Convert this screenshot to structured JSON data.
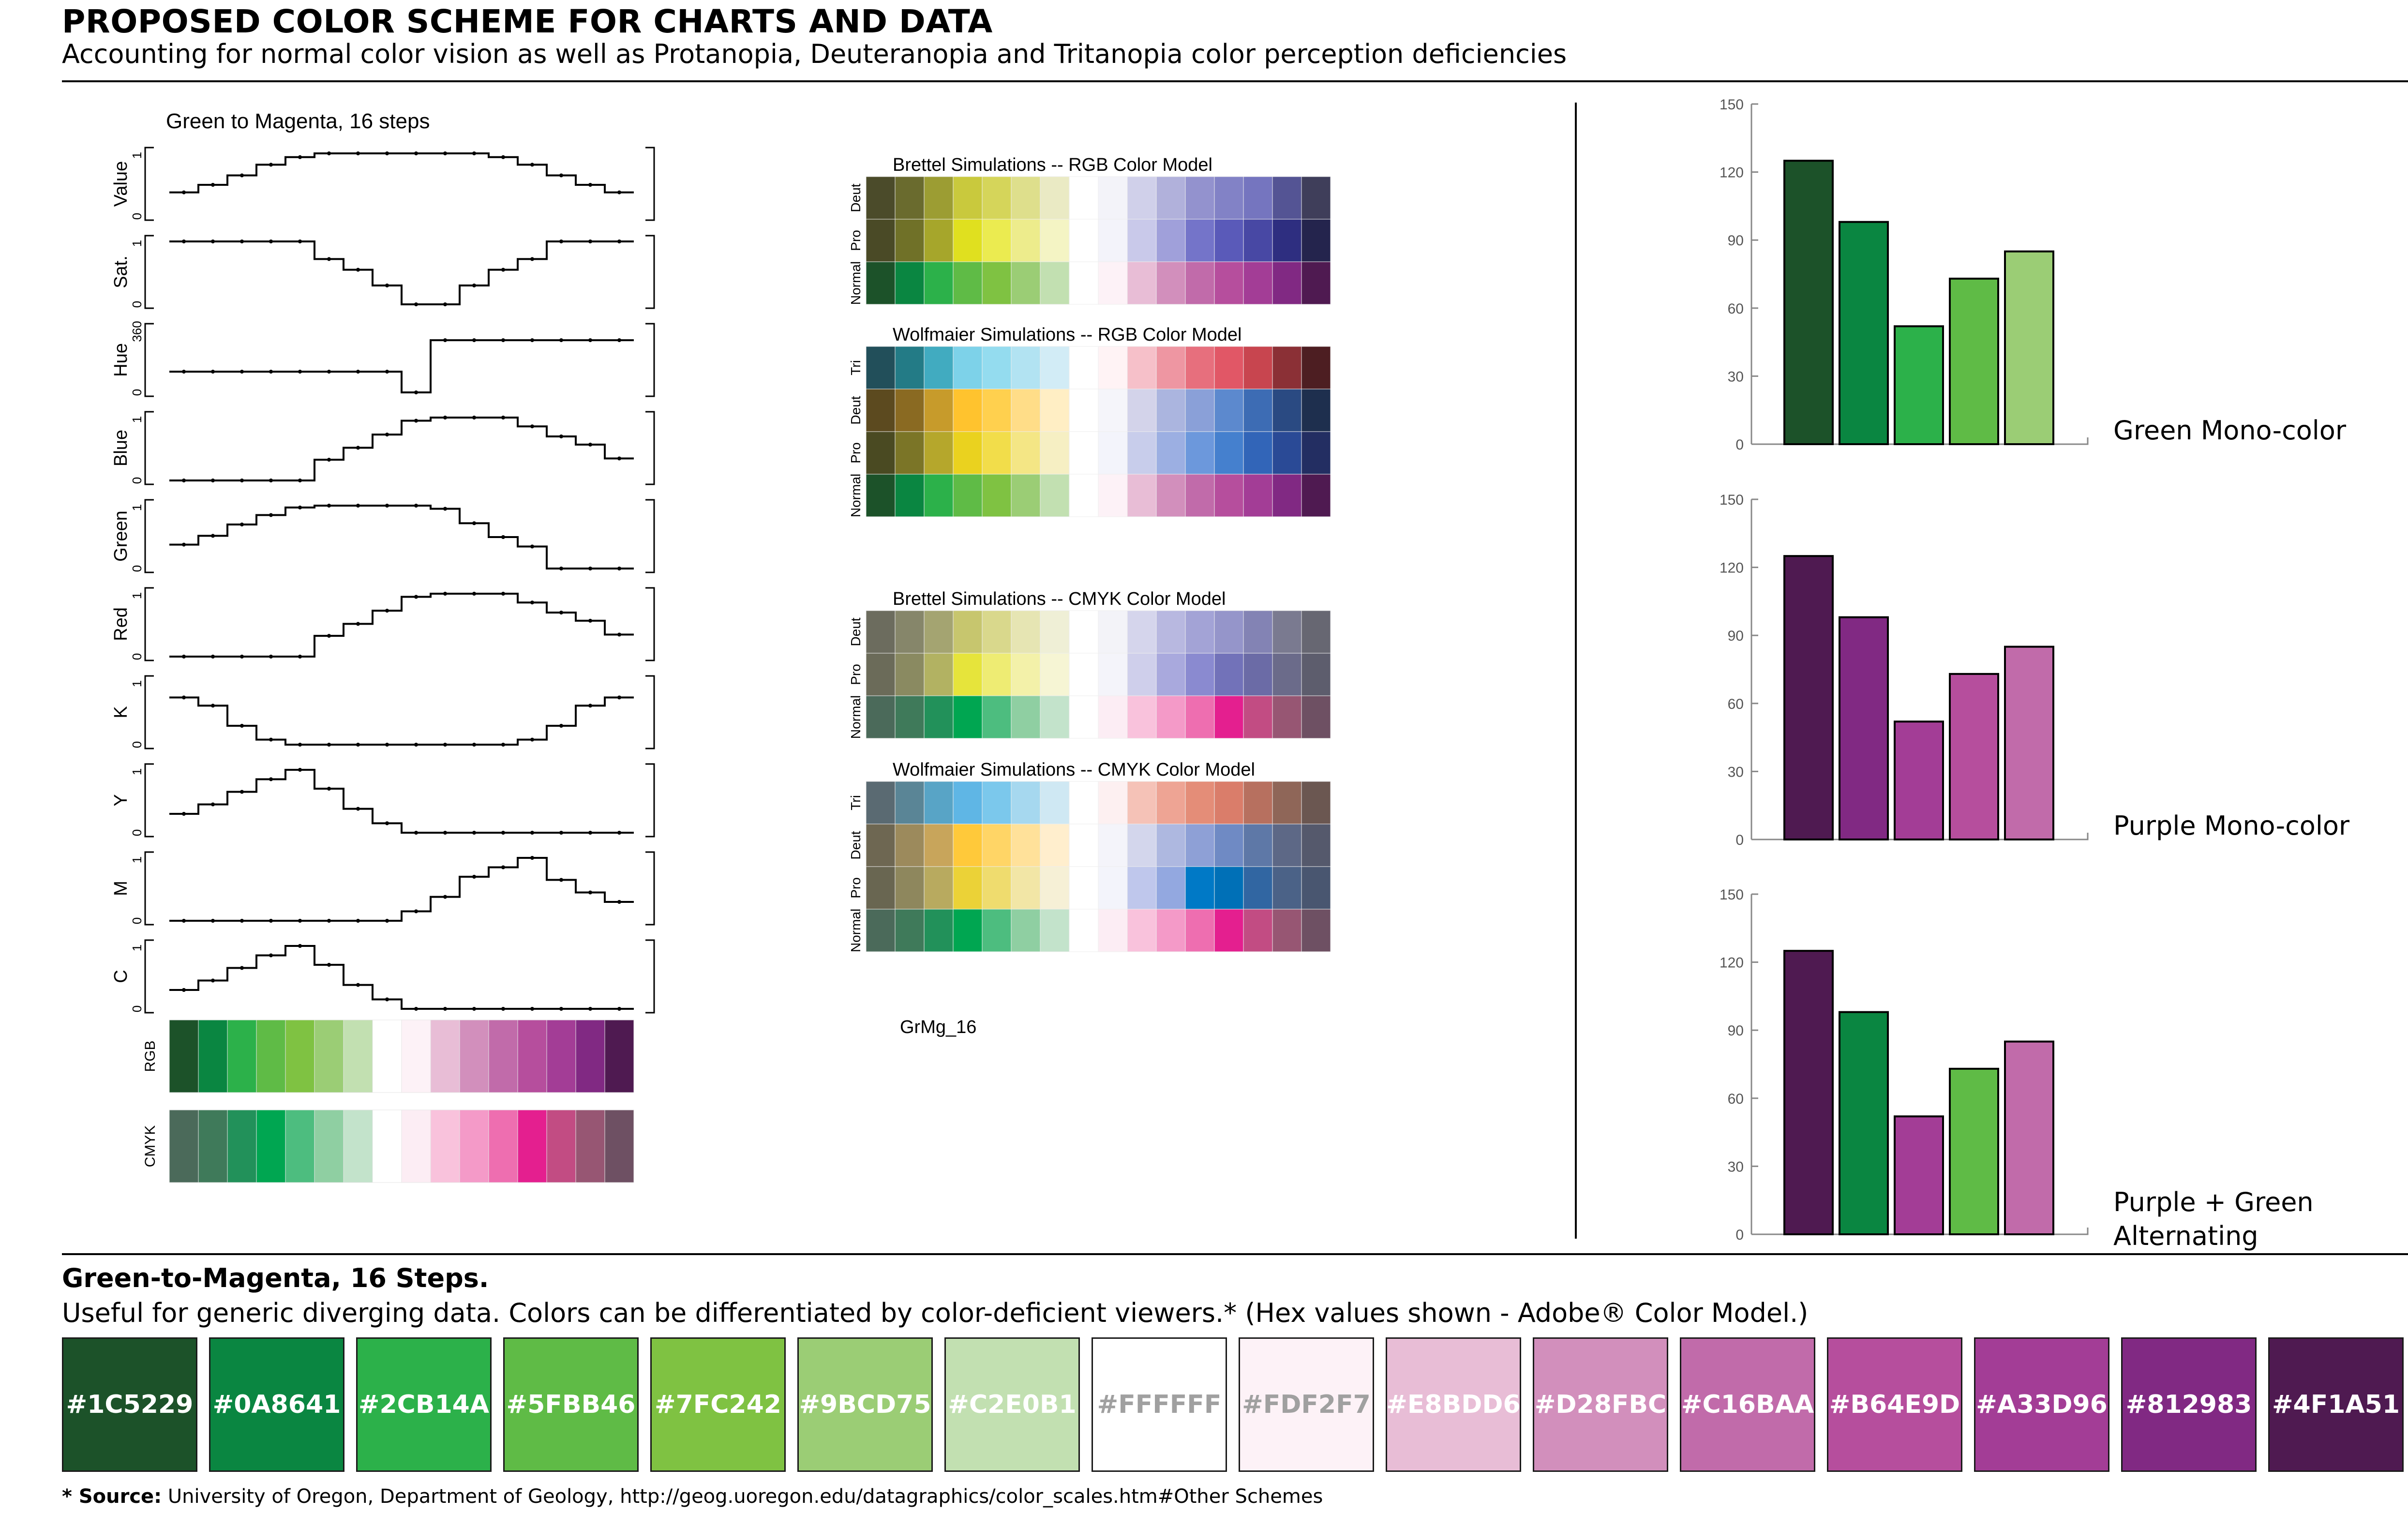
{
  "header": {
    "title": "PROPOSED COLOR SCHEME FOR CHARTS AND DATA",
    "subtitle": "Accounting for normal color vision as well as Protanopia, Deuteranopia and Tritanopia color perception deficiencies"
  },
  "scheme": {
    "title": "Green-to-Magenta, 16 Steps.",
    "description": "Useful for generic diverging data.  Colors can be differentiated by color-deficient viewers.* (Hex values shown - Adobe® Color Model.)",
    "hex_values": [
      "#1C5229",
      "#0A8641",
      "#2CB14A",
      "#5FBB46",
      "#7FC242",
      "#9BCD75",
      "#C2E0B1",
      "#FFFFFF",
      "#FDF2F7",
      "#E8BDD6",
      "#D28FBC",
      "#C16BAA",
      "#B64E9D",
      "#A33D96",
      "#812983",
      "#4F1A51"
    ],
    "label_colors": [
      "#ffffff",
      "#ffffff",
      "#ffffff",
      "#ffffff",
      "#ffffff",
      "#ffffff",
      "#ffffff",
      "#a0a0a0",
      "#a0a0a0",
      "#ffffff",
      "#ffffff",
      "#ffffff",
      "#ffffff",
      "#ffffff",
      "#ffffff",
      "#ffffff"
    ]
  },
  "footnote": {
    "bold": "* Source:",
    "text": " University of Oregon, Department of Geology, http://geog.uoregon.edu/datagraphics/color_scales.htm#Other Schemes"
  },
  "profiles": {
    "title": "Green to Magenta, 16 steps",
    "tick_top": "1",
    "tick_bottom": "0",
    "hue_tick_top": "360",
    "rows": [
      {
        "label": "Value",
        "values": [
          0.38,
          0.5,
          0.65,
          0.82,
          0.94,
          1,
          1,
          1,
          1,
          1,
          1,
          0.94,
          0.82,
          0.65,
          0.5,
          0.38
        ]
      },
      {
        "label": "Sat.",
        "values": [
          1,
          1,
          1,
          1,
          1,
          0.72,
          0.55,
          0.3,
          0,
          0,
          0.3,
          0.55,
          0.72,
          1,
          1,
          1
        ]
      },
      {
        "label": "Hue",
        "values": [
          0.33,
          0.33,
          0.33,
          0.33,
          0.33,
          0.33,
          0.33,
          0.33,
          0,
          0.83,
          0.83,
          0.83,
          0.83,
          0.83,
          0.83,
          0.83
        ]
      },
      {
        "label": "Blue",
        "values": [
          0,
          0,
          0,
          0,
          0,
          0.33,
          0.52,
          0.73,
          0.95,
          1,
          1,
          1,
          0.86,
          0.7,
          0.57,
          0.35
        ]
      },
      {
        "label": "Green",
        "values": [
          0.38,
          0.52,
          0.7,
          0.85,
          0.97,
          1,
          1,
          1,
          1,
          0.95,
          0.72,
          0.5,
          0.35,
          0,
          0,
          0
        ]
      },
      {
        "label": "Red",
        "values": [
          0,
          0,
          0,
          0,
          0,
          0.33,
          0.52,
          0.73,
          0.95,
          1,
          1,
          1,
          0.86,
          0.7,
          0.57,
          0.35
        ]
      },
      {
        "label": "K",
        "values": [
          0.75,
          0.62,
          0.3,
          0.08,
          0,
          0,
          0,
          0,
          0,
          0,
          0,
          0,
          0.08,
          0.3,
          0.62,
          0.75
        ]
      },
      {
        "label": "Y",
        "values": [
          0.3,
          0.45,
          0.65,
          0.85,
          1,
          0.7,
          0.38,
          0.15,
          0,
          0,
          0,
          0,
          0,
          0,
          0,
          0
        ]
      },
      {
        "label": "M",
        "values": [
          0,
          0,
          0,
          0,
          0,
          0,
          0,
          0,
          0.15,
          0.38,
          0.7,
          0.85,
          1,
          0.65,
          0.45,
          0.3
        ]
      },
      {
        "label": "C",
        "values": [
          0.3,
          0.45,
          0.65,
          0.85,
          1,
          0.7,
          0.38,
          0.15,
          0,
          0,
          0,
          0,
          0,
          0,
          0,
          0
        ]
      }
    ],
    "strips": [
      {
        "label": "RGB",
        "colors": [
          "#1C5229",
          "#0A8641",
          "#2CB14A",
          "#5FBB46",
          "#7FC242",
          "#9BCD75",
          "#C2E0B1",
          "#FFFFFF",
          "#FDF2F7",
          "#E8BDD6",
          "#D28FBC",
          "#C16BAA",
          "#B64E9D",
          "#A33D96",
          "#812983",
          "#4F1A51"
        ]
      },
      {
        "label": "CMYK",
        "colors": [
          "#4B6A5A",
          "#3F7A5A",
          "#22915A",
          "#00A651",
          "#4DBD7F",
          "#8FCFA2",
          "#C3E3CB",
          "#FFFFFF",
          "#FCEDF4",
          "#F9C2DC",
          "#F49AC8",
          "#EE6EB0",
          "#E41F8F",
          "#C24C83",
          "#975673",
          "#6E5063"
        ]
      }
    ]
  },
  "simulations": {
    "blocks": [
      {
        "title": "Brettel Simulations -- RGB Color Model",
        "rows": [
          {
            "label": "Deut",
            "colors": [
              "#4B4B2A",
              "#6A6B2E",
              "#9C9D33",
              "#C9C93D",
              "#D5D55A",
              "#DEDF8C",
              "#EAEAC4",
              "#FFFFFF",
              "#F3F3F9",
              "#D0D0EA",
              "#B1B1DB",
              "#9392CE",
              "#8282C6",
              "#7575BF",
              "#545494",
              "#3F3E5A"
            ]
          },
          {
            "label": "Pro",
            "colors": [
              "#4A4A26",
              "#707128",
              "#A6A62B",
              "#E0E01F",
              "#EBEB50",
              "#EDEC8C",
              "#F4F4C4",
              "#FFFFFF",
              "#F3F3FA",
              "#C9C9EA",
              "#A0A0DA",
              "#7474C9",
              "#5A5AB9",
              "#4848A4",
              "#2E2E80",
              "#24244D"
            ]
          },
          {
            "label": "Normal",
            "colors": [
              "#1C5229",
              "#0A8641",
              "#2CB14A",
              "#5FBB46",
              "#7FC242",
              "#9BCD75",
              "#C2E0B1",
              "#FFFFFF",
              "#FDF2F7",
              "#E8BDD6",
              "#D28FBC",
              "#C16BAA",
              "#B64E9D",
              "#A33D96",
              "#812983",
              "#4F1A51"
            ]
          }
        ]
      },
      {
        "title": "Wolfmaier Simulations -- RGB Color Model",
        "rows": [
          {
            "label": "Tri",
            "colors": [
              "#224F5A",
              "#237B86",
              "#41ABC0",
              "#7DD2E9",
              "#94DCEF",
              "#B2E3F2",
              "#D2ECF6",
              "#FFFFFF",
              "#FFF3F5",
              "#F6C0C9",
              "#EE96A2",
              "#E76F7D",
              "#E15766",
              "#C8454F",
              "#8B3036",
              "#4D1E22"
            ]
          },
          {
            "label": "Deut",
            "colors": [
              "#5C4A1F",
              "#8A6A22",
              "#C79B2B",
              "#FFC32E",
              "#FFD04E",
              "#FFDD88",
              "#FFEEC4",
              "#FFFFFF",
              "#F5F5FA",
              "#D3D3EA",
              "#ABB5DF",
              "#8AA0D8",
              "#5C89CE",
              "#3D6CB4",
              "#2A4A82",
              "#1E2F4E"
            ]
          },
          {
            "label": "Pro",
            "colors": [
              "#4A4A22",
              "#7B7527",
              "#B5A72C",
              "#EAD21F",
              "#F2DD4A",
              "#F4E685",
              "#F6EFC3",
              "#FFFFFF",
              "#F3F4FB",
              "#C8CDEB",
              "#9CAFE2",
              "#6C98DC",
              "#4580CE",
              "#3265B8",
              "#2A4A96",
              "#232E62"
            ]
          },
          {
            "label": "Normal",
            "colors": [
              "#1C5229",
              "#0A8641",
              "#2CB14A",
              "#5FBB46",
              "#7FC242",
              "#9BCD75",
              "#C2E0B1",
              "#FFFFFF",
              "#FDF2F7",
              "#E8BDD6",
              "#D28FBC",
              "#C16BAA",
              "#B64E9D",
              "#A33D96",
              "#812983",
              "#4F1A51"
            ]
          }
        ]
      },
      {
        "title": "Brettel Simulations -- CMYK Color Model",
        "rows": [
          {
            "label": "Deut",
            "colors": [
              "#6C6C5E",
              "#86866A",
              "#A4A471",
              "#C7C66E",
              "#D9D88C",
              "#E6E5B3",
              "#EFEFD6",
              "#FFFFFF",
              "#F3F3F8",
              "#D5D5EC",
              "#B8B8E0",
              "#A3A3D6",
              "#9595CA",
              "#8383B4",
              "#7A7A90",
              "#676772"
            ]
          },
          {
            "label": "Pro",
            "colors": [
              "#6B6B59",
              "#8A8A61",
              "#B2B262",
              "#E6E43B",
              "#EEEC73",
              "#F3F1A9",
              "#F6F5D4",
              "#FFFFFF",
              "#F4F4FA",
              "#CFCFEB",
              "#A9A9DD",
              "#8A8AD0",
              "#7272B9",
              "#6B6BA6",
              "#6B6B8A",
              "#5D5D6D"
            ]
          },
          {
            "label": "Normal",
            "colors": [
              "#4B6A5A",
              "#3F7A5A",
              "#22915A",
              "#00A651",
              "#4DBD7F",
              "#8FCFA2",
              "#C3E3CB",
              "#FFFFFF",
              "#FCEDF4",
              "#F9C2DC",
              "#F49AC8",
              "#EE6EB0",
              "#E41F8F",
              "#C24C83",
              "#975673",
              "#6E5063"
            ]
          }
        ]
      },
      {
        "title": "Wolfmaier Simulations -- CMYK Color Model",
        "rows": [
          {
            "label": "Tri",
            "colors": [
              "#5A6A72",
              "#5A8596",
              "#58A4C6",
              "#5FB6E5",
              "#7BC8EC",
              "#A6D8EF",
              "#CFE8F3",
              "#FFFFFF",
              "#FDF0F1",
              "#F5C2B7",
              "#EEA494",
              "#E48D78",
              "#DA7D6A",
              "#B7705F",
              "#8F6658",
              "#6B5751"
            ]
          },
          {
            "label": "Deut",
            "colors": [
              "#6E6752",
              "#9C8A5C",
              "#C8A55B",
              "#FFC93A",
              "#FFD566",
              "#FFE19A",
              "#FFEECD",
              "#FFFFFF",
              "#F4F4FA",
              "#D3D6EC",
              "#AEB8E0",
              "#8EA0D6",
              "#6F8AC4",
              "#5E78A7",
              "#5D6886",
              "#55596C"
            ]
          },
          {
            "label": "Pro",
            "colors": [
              "#696651",
              "#8E875D",
              "#B8AA5F",
              "#EBD237",
              "#EFDC6E",
              "#F2E6A6",
              "#F6F0D6",
              "#FFFFFF",
              "#F3F4FB",
              "#BFC7EC",
              "#93A8E0",
              "#0079C6",
              "#0070B7",
              "#3166A2",
              "#4B6287",
              "#495670"
            ]
          },
          {
            "label": "Normal",
            "colors": [
              "#4B6A5A",
              "#3F7A5A",
              "#22915A",
              "#00A651",
              "#4DBD7F",
              "#8FCFA2",
              "#C3E3CB",
              "#FFFFFF",
              "#FCEDF4",
              "#F9C2DC",
              "#F49AC8",
              "#EE6EB0",
              "#E41F8F",
              "#C24C83",
              "#975673",
              "#6E5063"
            ]
          }
        ]
      }
    ],
    "scheme_name": "GrMg_16"
  },
  "chart_data": [
    {
      "type": "bar",
      "title": "Green Mono-color",
      "values": [
        125,
        98,
        52,
        73,
        85
      ],
      "colors": [
        "#1C5229",
        "#0A8641",
        "#2CB14A",
        "#5FBB46",
        "#9BCD75"
      ],
      "ylim": [
        0,
        150
      ],
      "yticks": [
        0,
        30,
        60,
        90,
        120,
        150
      ]
    },
    {
      "type": "bar",
      "title": "Purple Mono-color",
      "values": [
        125,
        98,
        52,
        73,
        85
      ],
      "colors": [
        "#4F1A51",
        "#812983",
        "#A33D96",
        "#B64E9D",
        "#C16BAA"
      ],
      "ylim": [
        0,
        150
      ],
      "yticks": [
        0,
        30,
        60,
        90,
        120,
        150
      ]
    },
    {
      "type": "bar",
      "title": "Purple + Green\nAlternating",
      "title_lines": [
        "Purple + Green",
        "Alternating"
      ],
      "values": [
        125,
        98,
        52,
        73,
        85
      ],
      "colors": [
        "#4F1A51",
        "#0A8641",
        "#A33D96",
        "#5FBB46",
        "#C16BAA"
      ],
      "ylim": [
        0,
        150
      ],
      "yticks": [
        0,
        30,
        60,
        90,
        120,
        150
      ]
    }
  ]
}
